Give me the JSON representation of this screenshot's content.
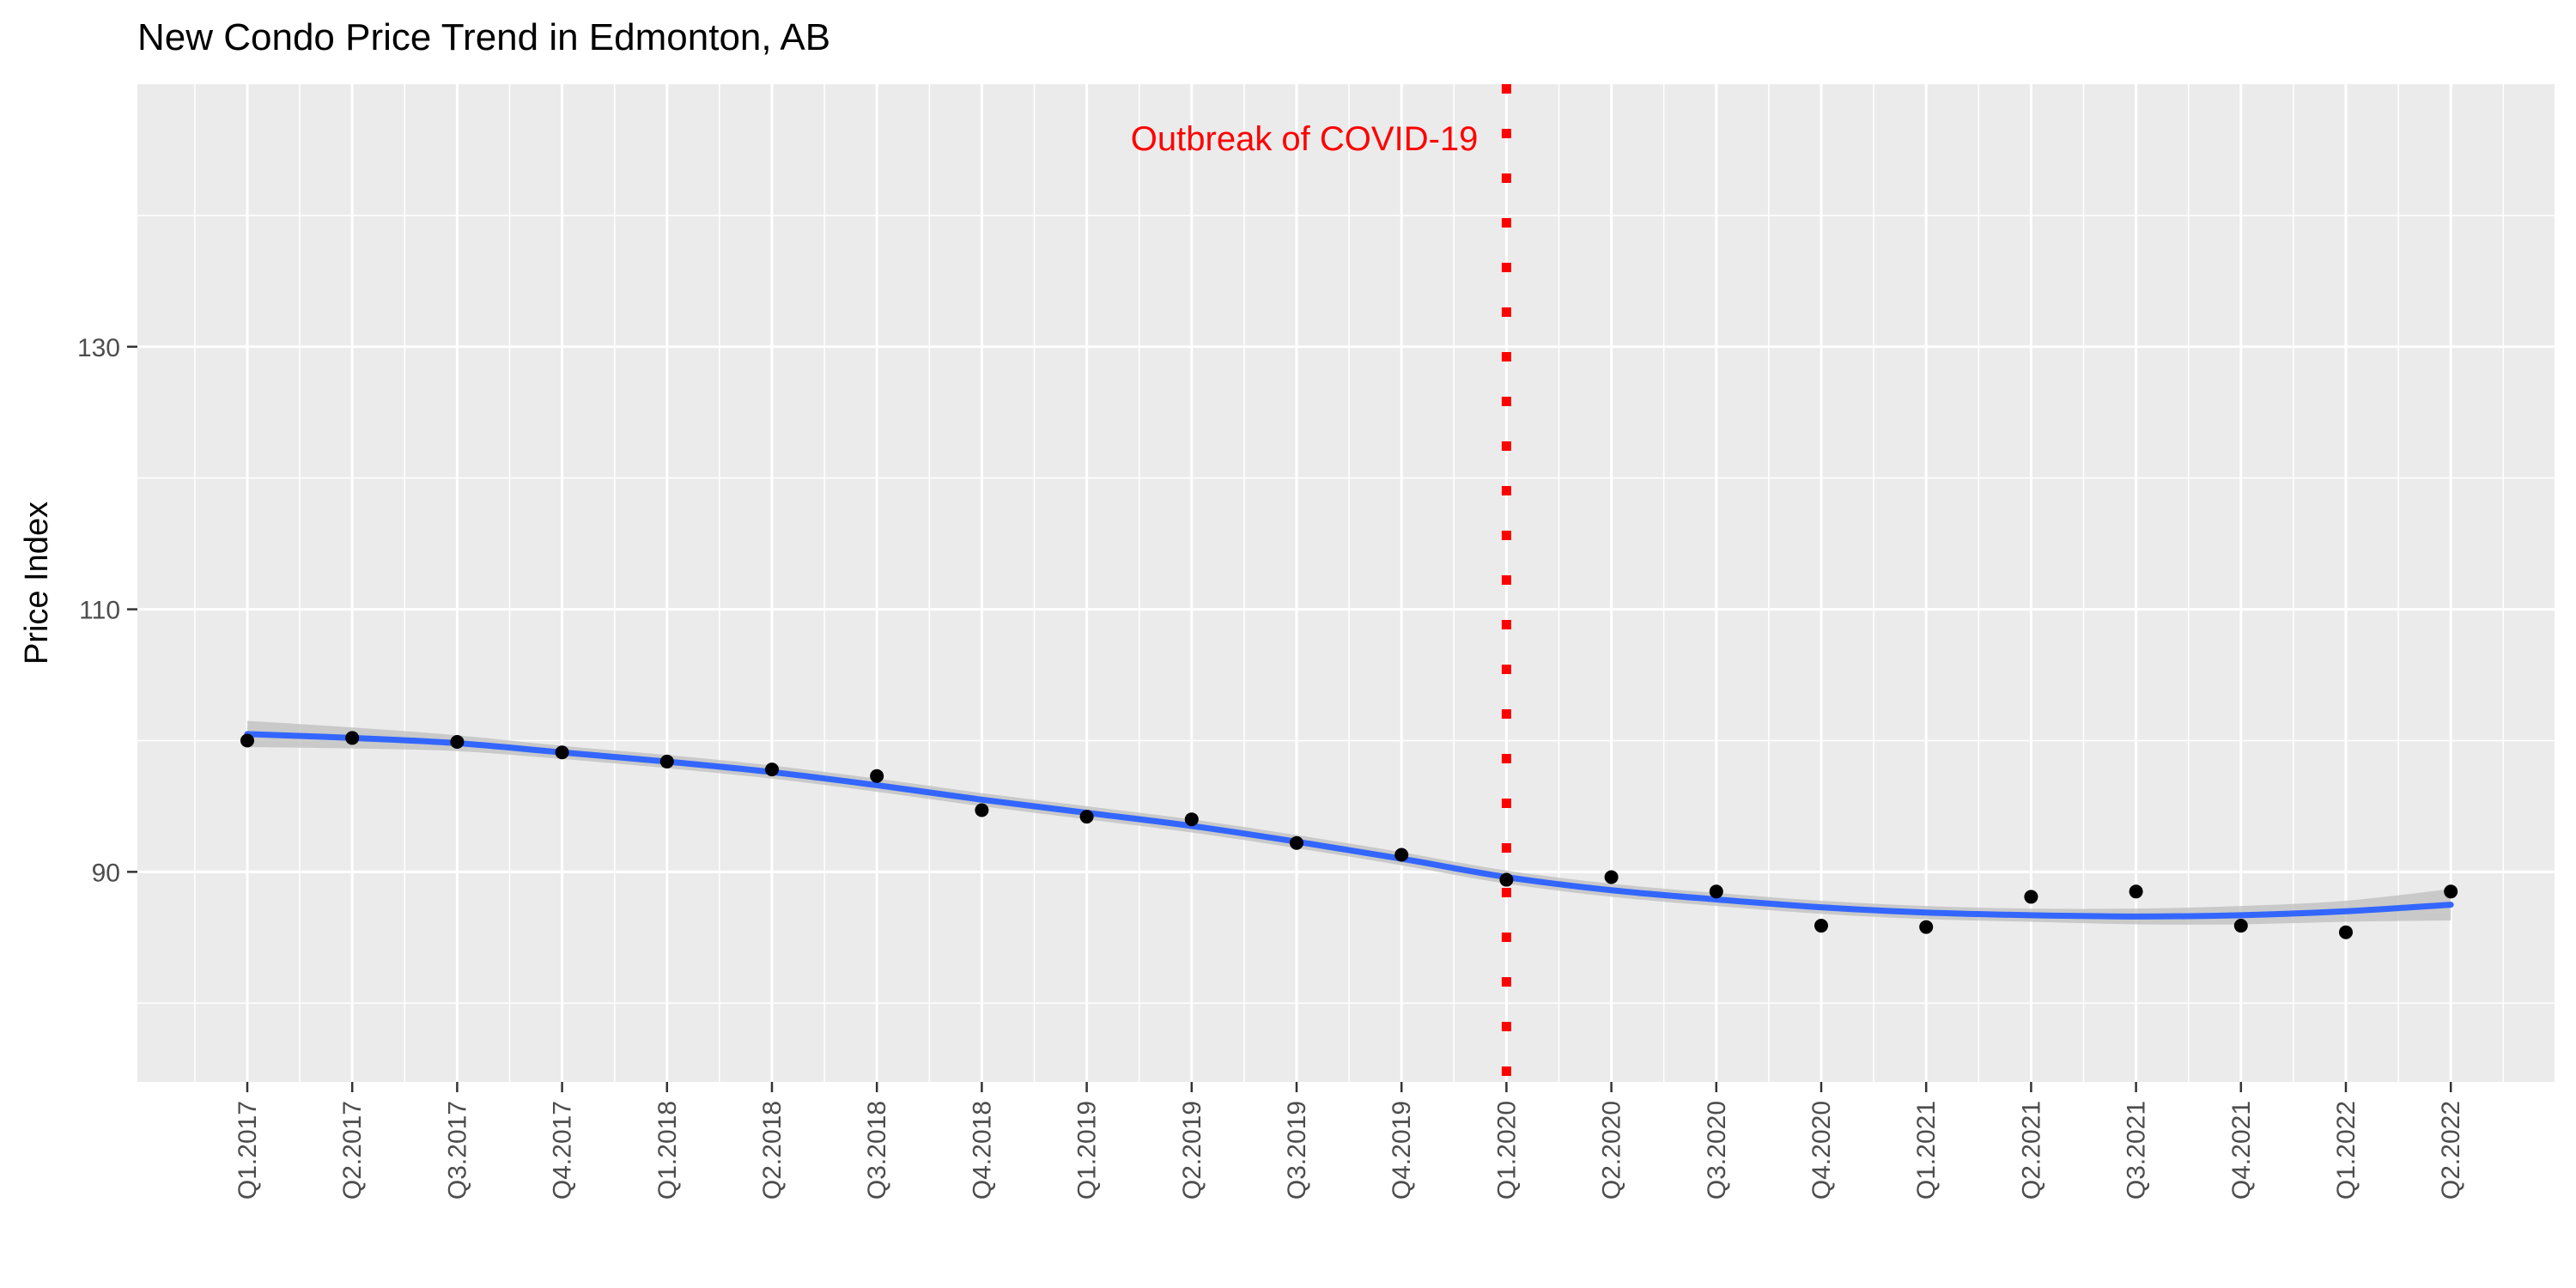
{
  "chart_data": {
    "type": "scatter",
    "title": "New Condo Price Trend in Edmonton, AB",
    "xlabel": "",
    "ylabel": "Price Index",
    "categories": [
      "Q1.2017",
      "Q2.2017",
      "Q3.2017",
      "Q4.2017",
      "Q1.2018",
      "Q2.2018",
      "Q3.2018",
      "Q4.2018",
      "Q1.2019",
      "Q2.2019",
      "Q3.2019",
      "Q4.2019",
      "Q1.2020",
      "Q2.2020",
      "Q3.2020",
      "Q4.2020",
      "Q1.2021",
      "Q2.2021",
      "Q3.2021",
      "Q4.2021",
      "Q1.2022",
      "Q2.2022"
    ],
    "series": [
      {
        "type": "scatter",
        "values": [
          100.0,
          100.2,
          99.9,
          99.1,
          98.4,
          97.8,
          97.3,
          94.7,
          94.2,
          94.0,
          92.2,
          91.3,
          89.4,
          89.6,
          88.5,
          85.9,
          85.8,
          88.1,
          88.5,
          85.9,
          85.4,
          88.5
        ],
        "color": "#000000"
      },
      {
        "type": "smooth-line",
        "values": [
          100.5,
          100.2,
          99.8,
          99.1,
          98.4,
          97.6,
          96.6,
          95.5,
          94.5,
          93.5,
          92.3,
          91.0,
          89.6,
          88.6,
          87.9,
          87.3,
          86.9,
          86.7,
          86.6,
          86.7,
          87.0,
          87.5
        ],
        "band_width": [
          1.0,
          0.8,
          0.6,
          0.5,
          0.5,
          0.5,
          0.5,
          0.5,
          0.5,
          0.5,
          0.5,
          0.5,
          0.5,
          0.5,
          0.5,
          0.5,
          0.5,
          0.5,
          0.6,
          0.7,
          0.8,
          1.2
        ],
        "color": "#3366FF",
        "band_color": "#BDBDBD"
      }
    ],
    "ylim": [
      74,
      150
    ],
    "y_ticks": [
      90,
      110,
      130
    ],
    "y_minor_ticks": [
      80,
      100,
      120,
      140
    ],
    "annotation": {
      "text": "Outbreak of COVID-19",
      "at": "Q1.2020",
      "color": "#FF0000",
      "line_style": "dotted"
    },
    "grid": true,
    "panel_background": "#EBEBEB",
    "grid_color": "#FFFFFF"
  }
}
